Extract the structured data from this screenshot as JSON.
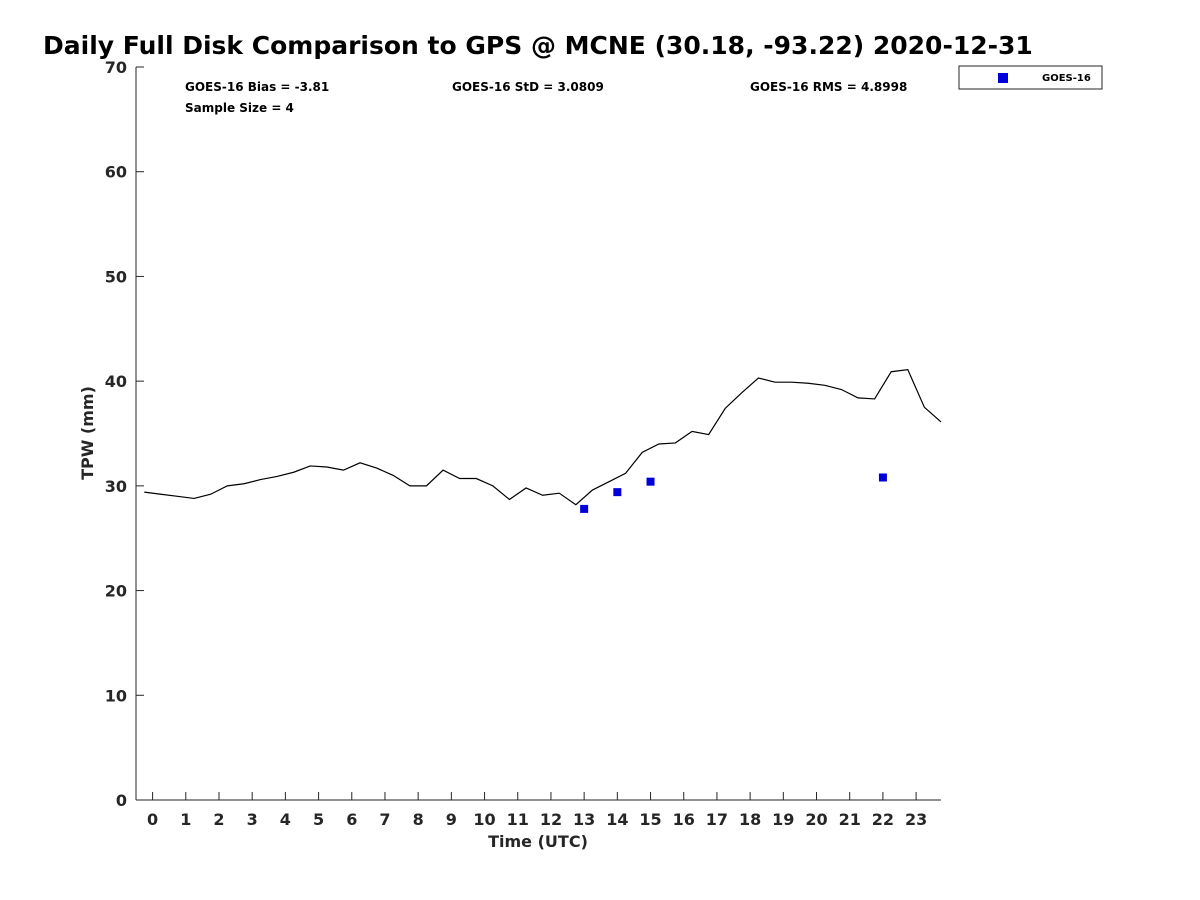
{
  "chart_data": {
    "type": "line",
    "title": "Daily Full Disk Comparison to GPS @ MCNE (30.18, -93.22) 2020-12-31",
    "xlabel": "Time (UTC)",
    "ylabel": "TPW (mm)",
    "xlim": [
      -0.5,
      23.75
    ],
    "ylim": [
      0,
      70
    ],
    "x_ticks": [
      0,
      1,
      2,
      3,
      4,
      5,
      6,
      7,
      8,
      9,
      10,
      11,
      12,
      13,
      14,
      15,
      16,
      17,
      18,
      19,
      20,
      21,
      22,
      23
    ],
    "y_ticks": [
      0,
      10,
      20,
      30,
      40,
      50,
      60,
      70
    ],
    "grid": false,
    "legend_position": "top-right, outside plot",
    "stats": {
      "bias": "GOES-16 Bias = -3.81",
      "std": "GOES-16 StD = 3.0809",
      "rms": "GOES-16 RMS = 4.8998",
      "sample_size": "Sample Size = 4"
    },
    "series": [
      {
        "style": "line",
        "color": "#000000",
        "x": [
          -0.25,
          0.25,
          0.75,
          1.25,
          1.75,
          2.25,
          2.75,
          3.25,
          3.75,
          4.25,
          4.75,
          5.25,
          5.75,
          6.25,
          6.75,
          7.25,
          7.75,
          8.25,
          8.75,
          9.25,
          9.75,
          10.25,
          10.75,
          11.25,
          11.75,
          12.25,
          12.75,
          13.25,
          13.75,
          14.25,
          14.75,
          15.25,
          15.75,
          16.25,
          16.75,
          17.25,
          17.75,
          18.25,
          18.75,
          19.25,
          19.75,
          20.25,
          20.75,
          21.25,
          21.75,
          22.25,
          22.75,
          23.25,
          23.75
        ],
        "values": [
          29.4,
          29.2,
          29.0,
          28.8,
          29.2,
          30.0,
          30.2,
          30.6,
          30.9,
          31.3,
          31.9,
          31.8,
          31.5,
          32.2,
          31.7,
          31.0,
          30.0,
          30.0,
          31.5,
          30.7,
          30.7,
          30.0,
          28.7,
          29.8,
          29.1,
          29.3,
          28.2,
          29.6,
          30.4,
          31.2,
          33.2,
          34.0,
          34.1,
          35.2,
          34.9,
          37.4,
          38.9,
          40.3,
          39.9,
          39.9,
          39.8,
          39.6,
          39.2,
          38.4,
          38.3,
          40.9,
          41.1,
          37.5,
          36.1
        ]
      },
      {
        "name": "GOES-16",
        "style": "marker",
        "color": "#0000dd",
        "x": [
          13.0,
          14.0,
          15.0,
          22.0
        ],
        "values": [
          27.8,
          29.4,
          30.4,
          30.8
        ]
      }
    ]
  }
}
